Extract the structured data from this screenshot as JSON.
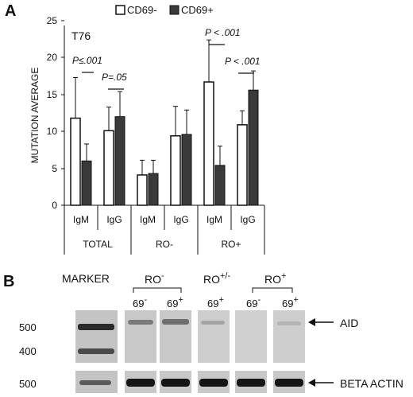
{
  "panel_a": {
    "letter": "A",
    "legend": [
      "CD69-",
      "CD69+"
    ],
    "ylabel": "MUTATION AVERAGE",
    "yticks": [
      "0",
      "5",
      "10",
      "15",
      "20",
      "25"
    ],
    "label_t76": "T76",
    "pvalues": [
      "P≤.001",
      "P=.05",
      "P < .001",
      "P < .001"
    ],
    "isotype_labels": [
      "IgM",
      "IgG",
      "IgM",
      "IgG",
      "IgM",
      "IgG"
    ],
    "group_labels": [
      "TOTAL",
      "RO-",
      "RO+"
    ]
  },
  "chart_data": {
    "type": "bar",
    "ylabel": "MUTATION AVERAGE",
    "ylim": [
      0,
      25
    ],
    "yticks": [
      0,
      5,
      10,
      15,
      20,
      25
    ],
    "groups": [
      "TOTAL",
      "RO-",
      "RO+"
    ],
    "categories": [
      "IgM",
      "IgG",
      "IgM",
      "IgG",
      "IgM",
      "IgG"
    ],
    "series": [
      {
        "name": "CD69-",
        "color": "#ffffff",
        "values": [
          11.8,
          10.1,
          4.1,
          9.4,
          16.7,
          10.9
        ],
        "error": [
          5.5,
          3.2,
          2.0,
          4.0,
          5.7,
          1.9
        ]
      },
      {
        "name": "CD69+",
        "color": "#3a3a3a",
        "values": [
          6.0,
          12.0,
          4.3,
          9.6,
          5.4,
          15.6
        ],
        "error": [
          2.3,
          3.4,
          1.8,
          3.3,
          2.6,
          2.6
        ]
      }
    ],
    "annotations": [
      "T76",
      "P≤.001",
      "P=.05",
      "P < .001",
      "P < .001"
    ]
  },
  "panel_b": {
    "letter": "B",
    "marker_label": "MARKER",
    "group_labels": [
      {
        "text": "RO",
        "sup": "-"
      },
      {
        "text": "RO",
        "sup": "+/-"
      },
      {
        "text": "RO",
        "sup": "+"
      }
    ],
    "lane_labels": [
      {
        "text": "69",
        "sup": "-"
      },
      {
        "text": "69",
        "sup": "+"
      },
      {
        "text": "69",
        "sup": "+"
      },
      {
        "text": "69",
        "sup": "-"
      },
      {
        "text": "69",
        "sup": "+"
      }
    ],
    "size_labels_top": [
      "500",
      "400"
    ],
    "size_label_bottom": "500",
    "aid_label": "AID",
    "actin_label": "BETA ACTIN"
  }
}
